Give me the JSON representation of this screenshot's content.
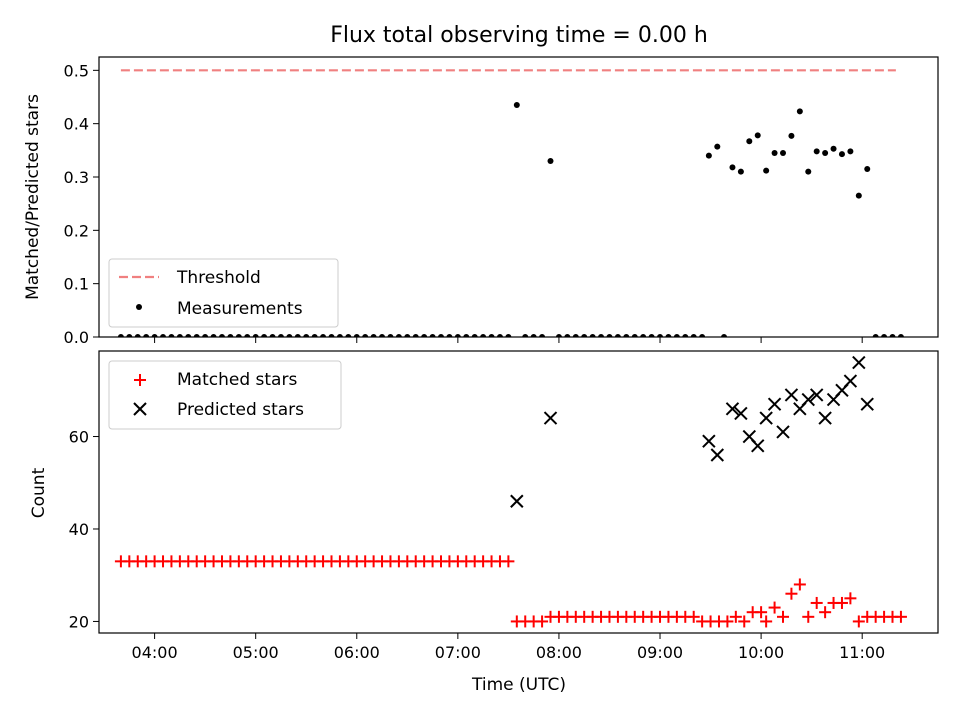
{
  "chart_data": [
    {
      "type": "scatter",
      "title": "Flux total observing time = 0.00 h",
      "xlabel": "",
      "ylabel": "Matched/Predicted stars",
      "xlim": [
        "03:27",
        "11:45"
      ],
      "ylim": [
        0,
        0.525
      ],
      "yticks": [
        0.0,
        0.1,
        0.2,
        0.3,
        0.4,
        0.5
      ],
      "xticks": [
        "04:00",
        "05:00",
        "06:00",
        "07:00",
        "08:00",
        "09:00",
        "10:00",
        "11:00"
      ],
      "legend_position": "lower-left",
      "threshold": {
        "name": "Threshold",
        "value": 0.5,
        "x_range": [
          "03:40",
          "11:20"
        ],
        "color": "#f08080"
      },
      "series": [
        {
          "name": "Measurements",
          "color": "#000000",
          "points": [
            [
              "03:40",
              0.0
            ],
            [
              "03:45",
              0.0
            ],
            [
              "03:50",
              0.0
            ],
            [
              "03:55",
              0.0
            ],
            [
              "04:00",
              0.0
            ],
            [
              "04:05",
              0.0
            ],
            [
              "04:10",
              0.0
            ],
            [
              "04:15",
              0.0
            ],
            [
              "04:20",
              0.0
            ],
            [
              "04:25",
              0.0
            ],
            [
              "04:30",
              0.0
            ],
            [
              "04:35",
              0.0
            ],
            [
              "04:40",
              0.0
            ],
            [
              "04:45",
              0.0
            ],
            [
              "04:50",
              0.0
            ],
            [
              "04:55",
              0.0
            ],
            [
              "05:00",
              0.0
            ],
            [
              "05:05",
              0.0
            ],
            [
              "05:10",
              0.0
            ],
            [
              "05:15",
              0.0
            ],
            [
              "05:20",
              0.0
            ],
            [
              "05:25",
              0.0
            ],
            [
              "05:30",
              0.0
            ],
            [
              "05:35",
              0.0
            ],
            [
              "05:40",
              0.0
            ],
            [
              "05:45",
              0.0
            ],
            [
              "05:50",
              0.0
            ],
            [
              "05:55",
              0.0
            ],
            [
              "06:00",
              0.0
            ],
            [
              "06:05",
              0.0
            ],
            [
              "06:10",
              0.0
            ],
            [
              "06:15",
              0.0
            ],
            [
              "06:20",
              0.0
            ],
            [
              "06:25",
              0.0
            ],
            [
              "06:30",
              0.0
            ],
            [
              "06:35",
              0.0
            ],
            [
              "06:40",
              0.0
            ],
            [
              "06:45",
              0.0
            ],
            [
              "06:50",
              0.0
            ],
            [
              "06:55",
              0.0
            ],
            [
              "07:00",
              0.0
            ],
            [
              "07:05",
              0.0
            ],
            [
              "07:10",
              0.0
            ],
            [
              "07:15",
              0.0
            ],
            [
              "07:20",
              0.0
            ],
            [
              "07:25",
              0.0
            ],
            [
              "07:30",
              0.0
            ],
            [
              "07:35",
              0.435
            ],
            [
              "07:40",
              0.0
            ],
            [
              "07:45",
              0.0
            ],
            [
              "07:50",
              0.0
            ],
            [
              "07:55",
              0.33
            ],
            [
              "08:00",
              0.0
            ],
            [
              "08:05",
              0.0
            ],
            [
              "08:10",
              0.0
            ],
            [
              "08:15",
              0.0
            ],
            [
              "08:20",
              0.0
            ],
            [
              "08:25",
              0.0
            ],
            [
              "08:30",
              0.0
            ],
            [
              "08:35",
              0.0
            ],
            [
              "08:40",
              0.0
            ],
            [
              "08:45",
              0.0
            ],
            [
              "08:50",
              0.0
            ],
            [
              "08:55",
              0.0
            ],
            [
              "09:00",
              0.0
            ],
            [
              "09:05",
              0.0
            ],
            [
              "09:10",
              0.0
            ],
            [
              "09:15",
              0.0
            ],
            [
              "09:20",
              0.0
            ],
            [
              "09:25",
              0.0
            ],
            [
              "09:29",
              0.34
            ],
            [
              "09:34",
              0.357
            ],
            [
              "09:38",
              0.0
            ],
            [
              "09:43",
              0.318
            ],
            [
              "09:48",
              0.31
            ],
            [
              "09:53",
              0.367
            ],
            [
              "09:58",
              0.378
            ],
            [
              "10:03",
              0.312
            ],
            [
              "10:08",
              0.345
            ],
            [
              "10:13",
              0.345
            ],
            [
              "10:18",
              0.377
            ],
            [
              "10:23",
              0.423
            ],
            [
              "10:28",
              0.31
            ],
            [
              "10:33",
              0.348
            ],
            [
              "10:38",
              0.345
            ],
            [
              "10:43",
              0.353
            ],
            [
              "10:48",
              0.343
            ],
            [
              "10:53",
              0.348
            ],
            [
              "10:58",
              0.265
            ],
            [
              "11:03",
              0.315
            ],
            [
              "11:08",
              0.0
            ],
            [
              "11:13",
              0.0
            ],
            [
              "11:18",
              0.0
            ],
            [
              "11:23",
              0.0
            ]
          ]
        }
      ]
    },
    {
      "type": "scatter",
      "title": "",
      "xlabel": "Time (UTC)",
      "ylabel": "Count",
      "xlim": [
        "03:27",
        "11:45"
      ],
      "ylim": [
        17.5,
        78.5
      ],
      "yticks": [
        20,
        40,
        60
      ],
      "xticks": [
        "04:00",
        "05:00",
        "06:00",
        "07:00",
        "08:00",
        "09:00",
        "10:00",
        "11:00"
      ],
      "legend_position": "upper-left",
      "series": [
        {
          "name": "Matched stars",
          "marker": "plus",
          "color": "#ff0000",
          "points": [
            [
              "03:40",
              33
            ],
            [
              "03:45",
              33
            ],
            [
              "03:50",
              33
            ],
            [
              "03:55",
              33
            ],
            [
              "04:00",
              33
            ],
            [
              "04:05",
              33
            ],
            [
              "04:10",
              33
            ],
            [
              "04:15",
              33
            ],
            [
              "04:20",
              33
            ],
            [
              "04:25",
              33
            ],
            [
              "04:30",
              33
            ],
            [
              "04:35",
              33
            ],
            [
              "04:40",
              33
            ],
            [
              "04:45",
              33
            ],
            [
              "04:50",
              33
            ],
            [
              "04:55",
              33
            ],
            [
              "05:00",
              33
            ],
            [
              "05:05",
              33
            ],
            [
              "05:10",
              33
            ],
            [
              "05:15",
              33
            ],
            [
              "05:20",
              33
            ],
            [
              "05:25",
              33
            ],
            [
              "05:30",
              33
            ],
            [
              "05:35",
              33
            ],
            [
              "05:40",
              33
            ],
            [
              "05:45",
              33
            ],
            [
              "05:50",
              33
            ],
            [
              "05:55",
              33
            ],
            [
              "06:00",
              33
            ],
            [
              "06:05",
              33
            ],
            [
              "06:10",
              33
            ],
            [
              "06:15",
              33
            ],
            [
              "06:20",
              33
            ],
            [
              "06:25",
              33
            ],
            [
              "06:30",
              33
            ],
            [
              "06:35",
              33
            ],
            [
              "06:40",
              33
            ],
            [
              "06:45",
              33
            ],
            [
              "06:50",
              33
            ],
            [
              "06:55",
              33
            ],
            [
              "07:00",
              33
            ],
            [
              "07:05",
              33
            ],
            [
              "07:10",
              33
            ],
            [
              "07:15",
              33
            ],
            [
              "07:20",
              33
            ],
            [
              "07:25",
              33
            ],
            [
              "07:30",
              33
            ],
            [
              "07:35",
              20
            ],
            [
              "07:40",
              20
            ],
            [
              "07:45",
              20
            ],
            [
              "07:50",
              20
            ],
            [
              "07:55",
              21
            ],
            [
              "08:00",
              21
            ],
            [
              "08:05",
              21
            ],
            [
              "08:10",
              21
            ],
            [
              "08:15",
              21
            ],
            [
              "08:20",
              21
            ],
            [
              "08:25",
              21
            ],
            [
              "08:30",
              21
            ],
            [
              "08:35",
              21
            ],
            [
              "08:40",
              21
            ],
            [
              "08:45",
              21
            ],
            [
              "08:50",
              21
            ],
            [
              "08:55",
              21
            ],
            [
              "09:00",
              21
            ],
            [
              "09:05",
              21
            ],
            [
              "09:10",
              21
            ],
            [
              "09:15",
              21
            ],
            [
              "09:20",
              21
            ],
            [
              "09:25",
              20
            ],
            [
              "09:30",
              20
            ],
            [
              "09:35",
              20
            ],
            [
              "09:40",
              20
            ],
            [
              "09:45",
              21
            ],
            [
              "09:50",
              20
            ],
            [
              "09:55",
              22
            ],
            [
              "10:00",
              22
            ],
            [
              "10:03",
              20
            ],
            [
              "10:08",
              23
            ],
            [
              "10:13",
              21
            ],
            [
              "10:18",
              26
            ],
            [
              "10:23",
              28
            ],
            [
              "10:28",
              21
            ],
            [
              "10:33",
              24
            ],
            [
              "10:38",
              22
            ],
            [
              "10:43",
              24
            ],
            [
              "10:48",
              24
            ],
            [
              "10:53",
              25
            ],
            [
              "10:58",
              20
            ],
            [
              "11:03",
              21
            ],
            [
              "11:08",
              21
            ],
            [
              "11:13",
              21
            ],
            [
              "11:18",
              21
            ],
            [
              "11:23",
              21
            ]
          ]
        },
        {
          "name": "Predicted stars",
          "marker": "x",
          "color": "#000000",
          "points": [
            [
              "07:35",
              46
            ],
            [
              "07:55",
              64
            ],
            [
              "09:29",
              59
            ],
            [
              "09:34",
              56
            ],
            [
              "09:43",
              66
            ],
            [
              "09:48",
              65
            ],
            [
              "09:53",
              60
            ],
            [
              "09:58",
              58
            ],
            [
              "10:03",
              64
            ],
            [
              "10:08",
              67
            ],
            [
              "10:13",
              61
            ],
            [
              "10:18",
              69
            ],
            [
              "10:23",
              66
            ],
            [
              "10:28",
              68
            ],
            [
              "10:33",
              69
            ],
            [
              "10:38",
              64
            ],
            [
              "10:43",
              68
            ],
            [
              "10:48",
              70
            ],
            [
              "10:53",
              72
            ],
            [
              "10:58",
              76
            ],
            [
              "11:03",
              67
            ]
          ]
        }
      ]
    }
  ]
}
